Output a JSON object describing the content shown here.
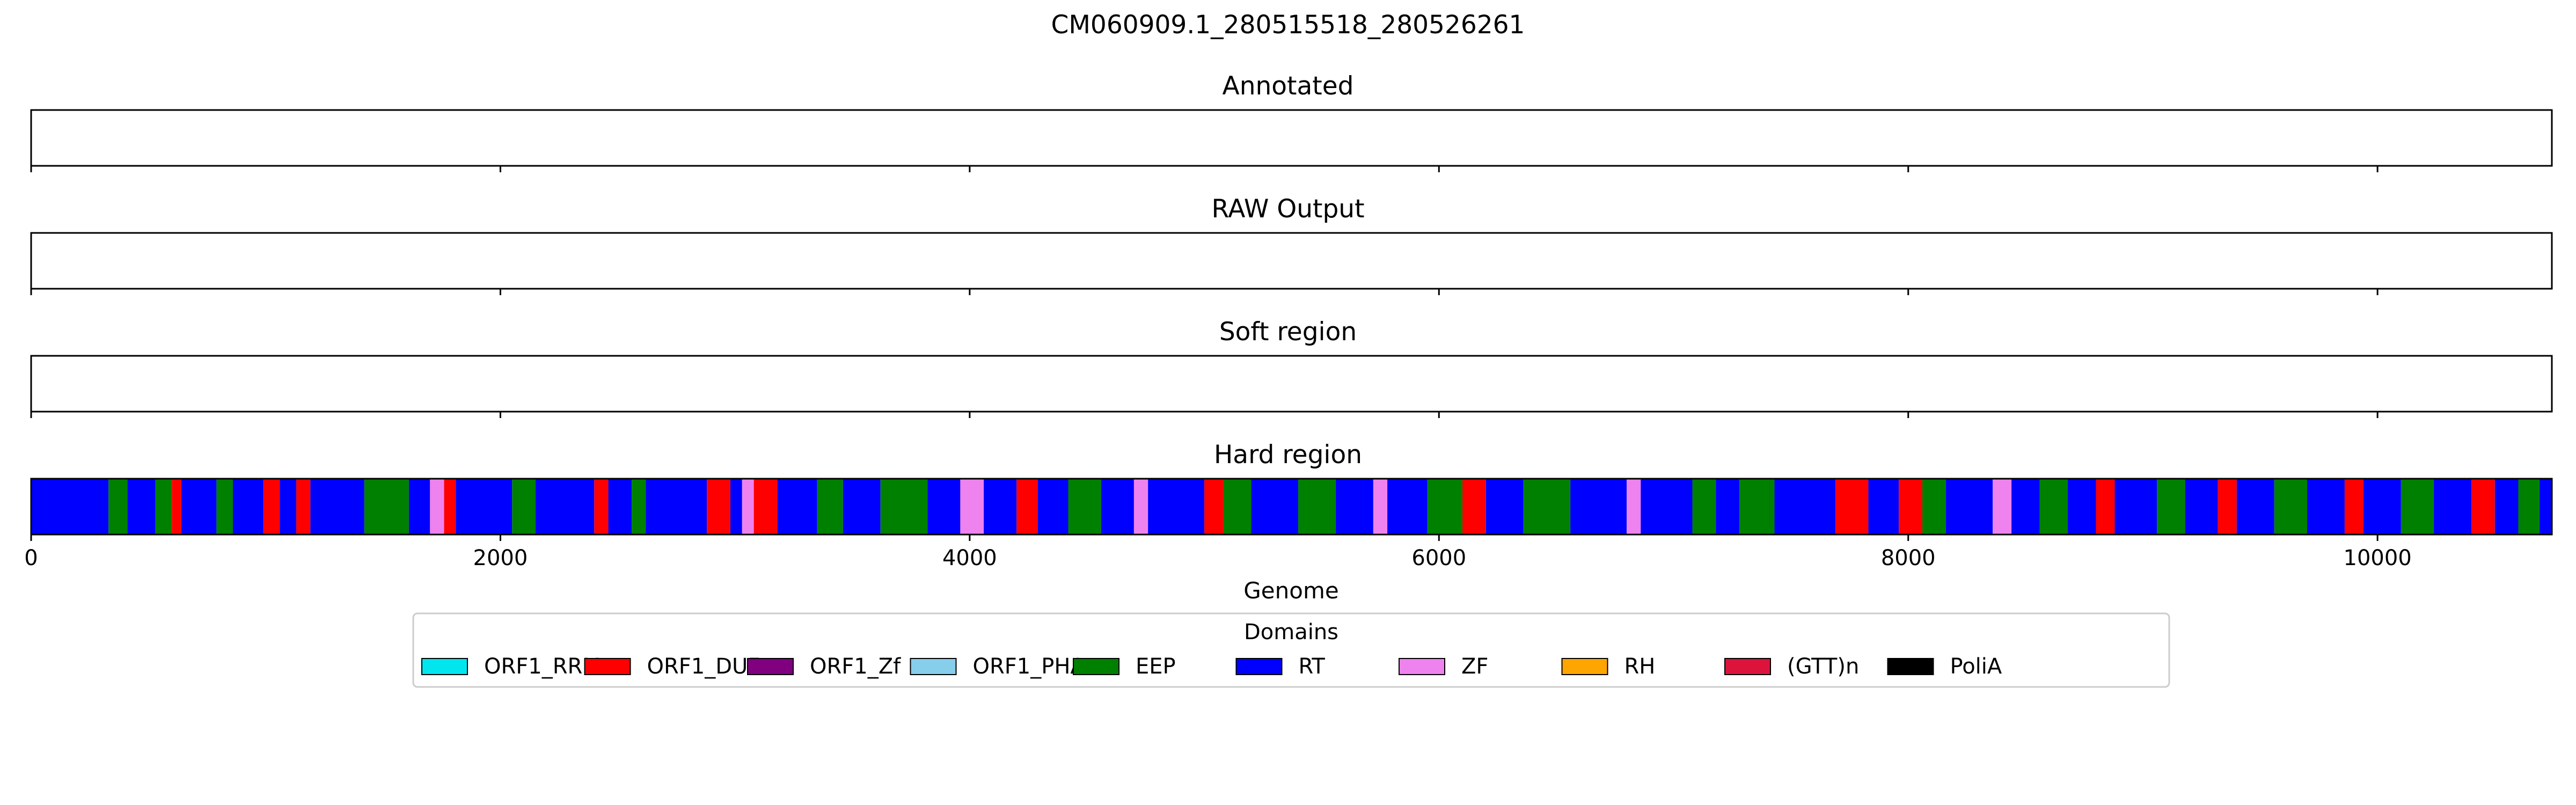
{
  "figure": {
    "title": "CM060909.1_280515518_280526261"
  },
  "colors": {
    "ORF1_RRM": "#00e5ee",
    "ORF1_DUF": "#ff0000",
    "ORF1_Zf": "#800080",
    "ORF1_PHA": "#87ceeb",
    "EEP": "#008000",
    "RT": "#0000ff",
    "ZF": "#ee82ee",
    "RH": "#ffa500",
    "(GTT)n": "#dc143c",
    "PoliA": "#000000"
  },
  "chart_data": {
    "type": "domain-track",
    "genome_length": 10743,
    "xlim": [
      0,
      10743
    ],
    "xticks": [
      0,
      2000,
      4000,
      6000,
      8000,
      10000
    ],
    "xtick_labels": [
      "0",
      "2000",
      "4000",
      "6000",
      "8000",
      "10000"
    ],
    "xlabel": "Genome",
    "legend": {
      "title": "Domains",
      "placement": "bottom-center",
      "entries": [
        "ORF1_RRM",
        "ORF1_DUF",
        "ORF1_Zf",
        "ORF1_PHA",
        "EEP",
        "RT",
        "ZF",
        "RH",
        "(GTT)n",
        "PoliA"
      ]
    },
    "panels": [
      {
        "title": "Annotated",
        "segments": []
      },
      {
        "title": "RAW Output",
        "style": "lines",
        "segments": []
      },
      {
        "title": "Soft region",
        "style": "lines",
        "segments": []
      },
      {
        "title": "Hard region",
        "style": "blocks",
        "segments": [
          {
            "start": 0,
            "end": 330,
            "label": "RT"
          },
          {
            "start": 330,
            "end": 410,
            "label": "EEP"
          },
          {
            "start": 410,
            "end": 530,
            "label": "RT"
          },
          {
            "start": 530,
            "end": 600,
            "label": "EEP"
          },
          {
            "start": 600,
            "end": 640,
            "label": "ORF1_DUF"
          },
          {
            "start": 640,
            "end": 790,
            "label": "RT"
          },
          {
            "start": 790,
            "end": 860,
            "label": "EEP"
          },
          {
            "start": 860,
            "end": 990,
            "label": "RT"
          },
          {
            "start": 990,
            "end": 1060,
            "label": "ORF1_DUF"
          },
          {
            "start": 1060,
            "end": 1130,
            "label": "RT"
          },
          {
            "start": 1130,
            "end": 1190,
            "label": "ORF1_DUF"
          },
          {
            "start": 1190,
            "end": 1420,
            "label": "RT"
          },
          {
            "start": 1420,
            "end": 1610,
            "label": "EEP"
          },
          {
            "start": 1610,
            "end": 1700,
            "label": "RT"
          },
          {
            "start": 1700,
            "end": 1760,
            "label": "ZF"
          },
          {
            "start": 1760,
            "end": 1810,
            "label": "ORF1_DUF"
          },
          {
            "start": 1810,
            "end": 2050,
            "label": "RT"
          },
          {
            "start": 2050,
            "end": 2150,
            "label": "EEP"
          },
          {
            "start": 2150,
            "end": 2400,
            "label": "RT"
          },
          {
            "start": 2400,
            "end": 2460,
            "label": "ORF1_DUF"
          },
          {
            "start": 2460,
            "end": 2560,
            "label": "RT"
          },
          {
            "start": 2560,
            "end": 2620,
            "label": "EEP"
          },
          {
            "start": 2620,
            "end": 2880,
            "label": "RT"
          },
          {
            "start": 2880,
            "end": 2980,
            "label": "ORF1_DUF"
          },
          {
            "start": 2980,
            "end": 3030,
            "label": "RT"
          },
          {
            "start": 3030,
            "end": 3080,
            "label": "ZF"
          },
          {
            "start": 3080,
            "end": 3180,
            "label": "ORF1_DUF"
          },
          {
            "start": 3180,
            "end": 3350,
            "label": "RT"
          },
          {
            "start": 3350,
            "end": 3460,
            "label": "EEP"
          },
          {
            "start": 3460,
            "end": 3620,
            "label": "RT"
          },
          {
            "start": 3620,
            "end": 3820,
            "label": "EEP"
          },
          {
            "start": 3820,
            "end": 3960,
            "label": "RT"
          },
          {
            "start": 3960,
            "end": 4060,
            "label": "ZF"
          },
          {
            "start": 4060,
            "end": 4200,
            "label": "RT"
          },
          {
            "start": 4200,
            "end": 4290,
            "label": "ORF1_DUF"
          },
          {
            "start": 4290,
            "end": 4420,
            "label": "RT"
          },
          {
            "start": 4420,
            "end": 4560,
            "label": "EEP"
          },
          {
            "start": 4560,
            "end": 4700,
            "label": "RT"
          },
          {
            "start": 4700,
            "end": 4760,
            "label": "ZF"
          },
          {
            "start": 4760,
            "end": 5000,
            "label": "RT"
          },
          {
            "start": 5000,
            "end": 5080,
            "label": "ORF1_DUF"
          },
          {
            "start": 5080,
            "end": 5200,
            "label": "EEP"
          },
          {
            "start": 5200,
            "end": 5400,
            "label": "RT"
          },
          {
            "start": 5400,
            "end": 5560,
            "label": "EEP"
          },
          {
            "start": 5560,
            "end": 5720,
            "label": "RT"
          },
          {
            "start": 5720,
            "end": 5780,
            "label": "ZF"
          },
          {
            "start": 5780,
            "end": 5950,
            "label": "RT"
          },
          {
            "start": 5950,
            "end": 6100,
            "label": "EEP"
          },
          {
            "start": 6100,
            "end": 6200,
            "label": "ORF1_DUF"
          },
          {
            "start": 6200,
            "end": 6360,
            "label": "RT"
          },
          {
            "start": 6360,
            "end": 6560,
            "label": "EEP"
          },
          {
            "start": 6560,
            "end": 6800,
            "label": "RT"
          },
          {
            "start": 6800,
            "end": 6860,
            "label": "ZF"
          },
          {
            "start": 6860,
            "end": 7080,
            "label": "RT"
          },
          {
            "start": 7080,
            "end": 7180,
            "label": "EEP"
          },
          {
            "start": 7180,
            "end": 7280,
            "label": "RT"
          },
          {
            "start": 7280,
            "end": 7430,
            "label": "EEP"
          },
          {
            "start": 7430,
            "end": 7690,
            "label": "RT"
          },
          {
            "start": 7690,
            "end": 7830,
            "label": "ORF1_DUF"
          },
          {
            "start": 7830,
            "end": 7960,
            "label": "RT"
          },
          {
            "start": 7960,
            "end": 8060,
            "label": "ORF1_DUF"
          },
          {
            "start": 8060,
            "end": 8160,
            "label": "EEP"
          },
          {
            "start": 8160,
            "end": 8360,
            "label": "RT"
          },
          {
            "start": 8360,
            "end": 8440,
            "label": "ZF"
          },
          {
            "start": 8440,
            "end": 8560,
            "label": "RT"
          },
          {
            "start": 8560,
            "end": 8680,
            "label": "EEP"
          },
          {
            "start": 8680,
            "end": 8800,
            "label": "RT"
          },
          {
            "start": 8800,
            "end": 8880,
            "label": "ORF1_DUF"
          },
          {
            "start": 8880,
            "end": 9060,
            "label": "RT"
          },
          {
            "start": 9060,
            "end": 9180,
            "label": "EEP"
          },
          {
            "start": 9180,
            "end": 9320,
            "label": "RT"
          },
          {
            "start": 9320,
            "end": 9400,
            "label": "ORF1_DUF"
          },
          {
            "start": 9400,
            "end": 9560,
            "label": "RT"
          },
          {
            "start": 9560,
            "end": 9700,
            "label": "EEP"
          },
          {
            "start": 9700,
            "end": 9860,
            "label": "RT"
          },
          {
            "start": 9860,
            "end": 9940,
            "label": "ORF1_DUF"
          },
          {
            "start": 9940,
            "end": 10100,
            "label": "RT"
          },
          {
            "start": 10100,
            "end": 10240,
            "label": "EEP"
          },
          {
            "start": 10240,
            "end": 10400,
            "label": "RT"
          },
          {
            "start": 10400,
            "end": 10500,
            "label": "ORF1_DUF"
          },
          {
            "start": 10500,
            "end": 10600,
            "label": "RT"
          },
          {
            "start": 10600,
            "end": 10690,
            "label": "EEP"
          },
          {
            "start": 10690,
            "end": 10743,
            "label": "RT"
          }
        ]
      }
    ]
  }
}
